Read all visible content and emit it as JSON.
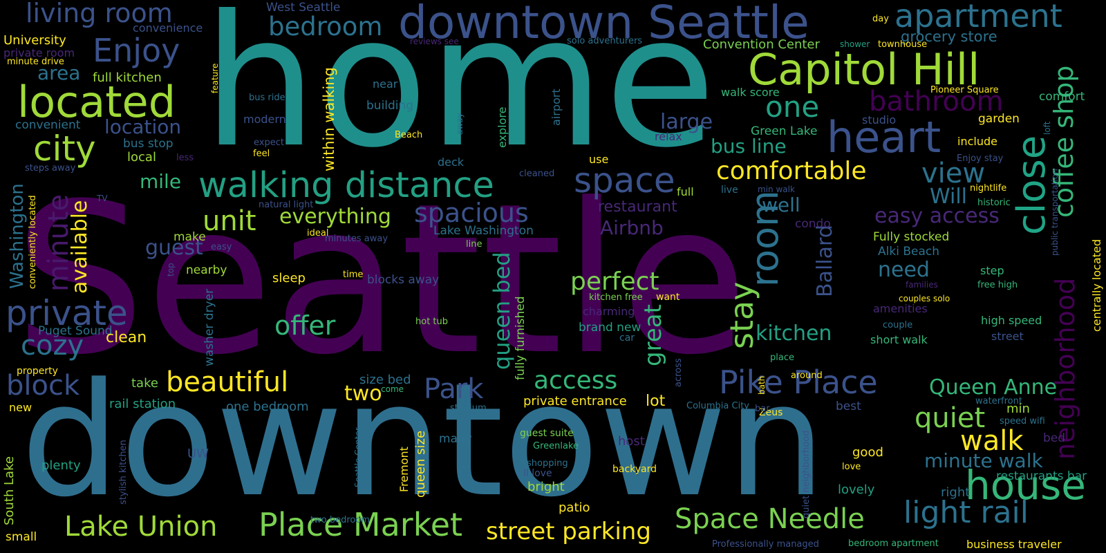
{
  "words": [
    {
      "text": "Seattle",
      "color": "#440154",
      "vertical": false
    },
    {
      "text": "home",
      "color": "#1f8f8c",
      "vertical": false
    },
    {
      "text": "downtown",
      "color": "#2f6f8e",
      "vertical": false
    },
    {
      "text": "downtown Seattle",
      "color": "#3b528b",
      "vertical": false
    },
    {
      "text": "Capitol Hill",
      "color": "#a0da39",
      "vertical": false
    },
    {
      "text": "walking distance",
      "color": "#23a083",
      "vertical": false
    },
    {
      "text": "located",
      "color": "#a0da39",
      "vertical": false
    },
    {
      "text": "living room",
      "color": "#3b528b",
      "vertical": false
    },
    {
      "text": "apartment",
      "color": "#2c728e",
      "vertical": false
    },
    {
      "text": "Enjoy",
      "color": "#3b528b",
      "vertical": false
    },
    {
      "text": "bedroom",
      "color": "#2c728e",
      "vertical": false
    },
    {
      "text": "city",
      "color": "#a0da39",
      "vertical": false
    },
    {
      "text": "heart",
      "color": "#3b528b",
      "vertical": false
    },
    {
      "text": "close",
      "color": "#20a486",
      "vertical": true
    },
    {
      "text": "coffee shop",
      "color": "#35b779",
      "vertical": true
    },
    {
      "text": "neighborhood",
      "color": "#440154",
      "vertical": true
    },
    {
      "text": "space",
      "color": "#3b528b",
      "vertical": false
    },
    {
      "text": "room",
      "color": "#2c728e",
      "vertical": true
    },
    {
      "text": "stay",
      "color": "#7ad151",
      "vertical": true
    },
    {
      "text": "private",
      "color": "#3b528b",
      "vertical": false
    },
    {
      "text": "minute",
      "color": "#481a6c",
      "vertical": true
    },
    {
      "text": "house",
      "color": "#35b779",
      "vertical": false
    },
    {
      "text": "Pike Place",
      "color": "#3b528b",
      "vertical": false
    },
    {
      "text": "Place Market",
      "color": "#7ad151",
      "vertical": false
    },
    {
      "text": "Space Needle",
      "color": "#7ad151",
      "vertical": false
    },
    {
      "text": "light rail",
      "color": "#2c728e",
      "vertical": false
    },
    {
      "text": "Lake Union",
      "color": "#a0da39",
      "vertical": false
    },
    {
      "text": "beautiful",
      "color": "#fde725",
      "vertical": false
    },
    {
      "text": "comfortable",
      "color": "#fde725",
      "vertical": false
    },
    {
      "text": "spacious",
      "color": "#3b528b",
      "vertical": false
    },
    {
      "text": "unit",
      "color": "#a0da39",
      "vertical": false
    },
    {
      "text": "everything",
      "color": "#a0da39",
      "vertical": false
    },
    {
      "text": "perfect",
      "color": "#7ad151",
      "vertical": false
    },
    {
      "text": "offer",
      "color": "#35b779",
      "vertical": false
    },
    {
      "text": "access",
      "color": "#35b779",
      "vertical": false
    },
    {
      "text": "block",
      "color": "#3b528b",
      "vertical": false
    },
    {
      "text": "cozy",
      "color": "#2c728e",
      "vertical": false
    },
    {
      "text": "Park",
      "color": "#3b528b",
      "vertical": false
    },
    {
      "text": "quiet",
      "color": "#7ad151",
      "vertical": false
    },
    {
      "text": "walk",
      "color": "#fde725",
      "vertical": false
    },
    {
      "text": "Queen Anne",
      "color": "#35b779",
      "vertical": false
    },
    {
      "text": "minute walk",
      "color": "#2c728e",
      "vertical": false
    },
    {
      "text": "street parking",
      "color": "#fde725",
      "vertical": false
    },
    {
      "text": "one",
      "color": "#23a083",
      "vertical": false
    },
    {
      "text": "bathroom",
      "color": "#440154",
      "vertical": false
    },
    {
      "text": "view",
      "color": "#2c728e",
      "vertical": false
    },
    {
      "text": "great",
      "color": "#35b779",
      "vertical": true
    },
    {
      "text": "queen bed",
      "color": "#23a083",
      "vertical": true
    },
    {
      "text": "Ballard",
      "color": "#3b528b",
      "vertical": true
    },
    {
      "text": "kitchen",
      "color": "#23a083",
      "vertical": false
    },
    {
      "text": "guest",
      "color": "#3b528b",
      "vertical": false
    },
    {
      "text": "available",
      "color": "#fde725",
      "vertical": true
    },
    {
      "text": "Washington",
      "color": "#2c728e",
      "vertical": true
    },
    {
      "text": "two",
      "color": "#fde725",
      "vertical": false
    },
    {
      "text": "location",
      "color": "#3b528b",
      "vertical": false
    },
    {
      "text": "area",
      "color": "#2c728e",
      "vertical": false
    },
    {
      "text": "large",
      "color": "#3b528b",
      "vertical": false
    },
    {
      "text": "bus line",
      "color": "#23a083",
      "vertical": false
    },
    {
      "text": "easy access",
      "color": "#482878",
      "vertical": false
    },
    {
      "text": "Will",
      "color": "#2c728e",
      "vertical": false
    },
    {
      "text": "Airbnb",
      "color": "#482878",
      "vertical": false
    },
    {
      "text": "well",
      "color": "#2c728e",
      "vertical": false
    },
    {
      "text": "need",
      "color": "#2c728e",
      "vertical": false
    },
    {
      "text": "mile",
      "color": "#35b779",
      "vertical": false
    },
    {
      "text": "restaurant",
      "color": "#482878",
      "vertical": false
    },
    {
      "text": "within walking",
      "color": "#fde725",
      "vertical": true
    },
    {
      "text": "grocery store",
      "color": "#2c728e",
      "vertical": false
    },
    {
      "text": "Convention Center",
      "color": "#7ad151",
      "vertical": false
    },
    {
      "text": "West Seattle",
      "color": "#3b528b",
      "vertical": false
    },
    {
      "text": "University",
      "color": "#fde725",
      "vertical": false
    },
    {
      "text": "convenience",
      "color": "#3b528b",
      "vertical": false
    },
    {
      "text": "private room",
      "color": "#482878",
      "vertical": false
    },
    {
      "text": "minute drive",
      "color": "#fde725",
      "vertical": false
    },
    {
      "text": "full kitchen",
      "color": "#a0da39",
      "vertical": false
    },
    {
      "text": "convenient",
      "color": "#2c728e",
      "vertical": false
    },
    {
      "text": "bus stop",
      "color": "#2c728e",
      "vertical": false
    },
    {
      "text": "local",
      "color": "#a0da39",
      "vertical": false
    },
    {
      "text": "less",
      "color": "#482878",
      "vertical": false
    },
    {
      "text": "steps away",
      "color": "#3b528b",
      "vertical": false
    },
    {
      "text": "TV",
      "color": "#3b528b",
      "vertical": false
    },
    {
      "text": "conveniently located",
      "color": "#fde725",
      "vertical": true
    },
    {
      "text": "Puget Sound",
      "color": "#2c728e",
      "vertical": false
    },
    {
      "text": "property",
      "color": "#fde725",
      "vertical": false
    },
    {
      "text": "clean",
      "color": "#fde725",
      "vertical": false
    },
    {
      "text": "new",
      "color": "#fde725",
      "vertical": false
    },
    {
      "text": "take",
      "color": "#7ad151",
      "vertical": false
    },
    {
      "text": "rail station",
      "color": "#23a083",
      "vertical": false
    },
    {
      "text": "one bedroom",
      "color": "#2c728e",
      "vertical": false
    },
    {
      "text": "size bed",
      "color": "#2c728e",
      "vertical": false
    },
    {
      "text": "come",
      "color": "#35b779",
      "vertical": false
    },
    {
      "text": "stadium",
      "color": "#2c728e",
      "vertical": false
    },
    {
      "text": "South Lake",
      "color": "#a0da39",
      "vertical": true
    },
    {
      "text": "small",
      "color": "#fde725",
      "vertical": false
    },
    {
      "text": "plenty",
      "color": "#23a083",
      "vertical": false
    },
    {
      "text": "stylish kitchen",
      "color": "#3b528b",
      "vertical": true
    },
    {
      "text": "UW",
      "color": "#3b528b",
      "vertical": false
    },
    {
      "text": "Seattle Center",
      "color": "#2c728e",
      "vertical": true
    },
    {
      "text": "Fremont",
      "color": "#fde725",
      "vertical": true
    },
    {
      "text": "queen size",
      "color": "#fde725",
      "vertical": true
    },
    {
      "text": "many",
      "color": "#2c728e",
      "vertical": false
    },
    {
      "text": "two bedroom",
      "color": "#2c728e",
      "vertical": false
    },
    {
      "text": "guest suite",
      "color": "#7ad151",
      "vertical": false
    },
    {
      "text": "Greenlake",
      "color": "#35b779",
      "vertical": false
    },
    {
      "text": "shopping",
      "color": "#2c728e",
      "vertical": false
    },
    {
      "text": "ll love",
      "color": "#3b528b",
      "vertical": false
    },
    {
      "text": "bright",
      "color": "#a0da39",
      "vertical": false
    },
    {
      "text": "patio",
      "color": "#fde725",
      "vertical": false
    },
    {
      "text": "host",
      "color": "#482878",
      "vertical": false
    },
    {
      "text": "backyard",
      "color": "#fde725",
      "vertical": false
    },
    {
      "text": "private entrance",
      "color": "#fde725",
      "vertical": false
    },
    {
      "text": "lot",
      "color": "#fde725",
      "vertical": false
    },
    {
      "text": "Columbia City",
      "color": "#2c728e",
      "vertical": false
    },
    {
      "text": "Zeus",
      "color": "#fde725",
      "vertical": false
    },
    {
      "text": "bar",
      "color": "#3b528b",
      "vertical": false
    },
    {
      "text": "waterfront",
      "color": "#2c728e",
      "vertical": false
    },
    {
      "text": "min",
      "color": "#a0da39",
      "vertical": false
    },
    {
      "text": "speed wifi",
      "color": "#2c728e",
      "vertical": false
    },
    {
      "text": "best",
      "color": "#3b528b",
      "vertical": false
    },
    {
      "text": "bed",
      "color": "#482878",
      "vertical": false
    },
    {
      "text": "good",
      "color": "#fde725",
      "vertical": false
    },
    {
      "text": "love",
      "color": "#fde725",
      "vertical": false
    },
    {
      "text": "restaurants bar",
      "color": "#23a083",
      "vertical": false
    },
    {
      "text": "lovely",
      "color": "#23a083",
      "vertical": false
    },
    {
      "text": "right",
      "color": "#2c728e",
      "vertical": false
    },
    {
      "text": "quiet neighborhood",
      "color": "#3b528b",
      "vertical": true
    },
    {
      "text": "Professionally managed",
      "color": "#3b528b",
      "vertical": false
    },
    {
      "text": "bedroom apartment",
      "color": "#35b779",
      "vertical": false
    },
    {
      "text": "business traveler",
      "color": "#fde725",
      "vertical": false
    },
    {
      "text": "washer dryer",
      "color": "#2c728e",
      "vertical": true
    },
    {
      "text": "fully furnished",
      "color": "#7ad151",
      "vertical": true
    },
    {
      "text": "brand new",
      "color": "#23a083",
      "vertical": false
    },
    {
      "text": "car",
      "color": "#2c728e",
      "vertical": false
    },
    {
      "text": "charming",
      "color": "#482878",
      "vertical": false
    },
    {
      "text": "hot tub",
      "color": "#7ad151",
      "vertical": false
    },
    {
      "text": "kitchen free",
      "color": "#7ad151",
      "vertical": false
    },
    {
      "text": "want",
      "color": "#fde725",
      "vertical": false
    },
    {
      "text": "sleep",
      "color": "#fde725",
      "vertical": false
    },
    {
      "text": "blocks away",
      "color": "#3b528b",
      "vertical": false
    },
    {
      "text": "time",
      "color": "#fde725",
      "vertical": false
    },
    {
      "text": "nearby",
      "color": "#a0da39",
      "vertical": false
    },
    {
      "text": "make",
      "color": "#a0da39",
      "vertical": false
    },
    {
      "text": "easy",
      "color": "#3b528b",
      "vertical": false
    },
    {
      "text": "top",
      "color": "#3b528b",
      "vertical": true
    },
    {
      "text": "ideal",
      "color": "#fde725",
      "vertical": false
    },
    {
      "text": "minutes away",
      "color": "#3b528b",
      "vertical": false
    },
    {
      "text": "line",
      "color": "#7ad151",
      "vertical": false
    },
    {
      "text": "Lake Washington",
      "color": "#2c728e",
      "vertical": false
    },
    {
      "text": "condo",
      "color": "#482878",
      "vertical": false
    },
    {
      "text": "natural light",
      "color": "#3b528b",
      "vertical": false
    },
    {
      "text": "modern",
      "color": "#3b528b",
      "vertical": false
    },
    {
      "text": "expect",
      "color": "#3b528b",
      "vertical": false
    },
    {
      "text": "feel",
      "color": "#fde725",
      "vertical": false
    },
    {
      "text": "bus ride",
      "color": "#2c728e",
      "vertical": false
    },
    {
      "text": "near",
      "color": "#2c728e",
      "vertical": false
    },
    {
      "text": "building",
      "color": "#2c728e",
      "vertical": false
    },
    {
      "text": "Beach",
      "color": "#fde725",
      "vertical": false
    },
    {
      "text": "explore",
      "color": "#35b779",
      "vertical": true
    },
    {
      "text": "away",
      "color": "#2c728e",
      "vertical": true
    },
    {
      "text": "airport",
      "color": "#2c728e",
      "vertical": true
    },
    {
      "text": "deck",
      "color": "#2c728e",
      "vertical": false
    },
    {
      "text": "use",
      "color": "#fde725",
      "vertical": false
    },
    {
      "text": "relax",
      "color": "#482878",
      "vertical": false
    },
    {
      "text": "cleaned",
      "color": "#3b528b",
      "vertical": false
    },
    {
      "text": "full",
      "color": "#a0da39",
      "vertical": false
    },
    {
      "text": "live",
      "color": "#2c728e",
      "vertical": false
    },
    {
      "text": "min walk",
      "color": "#3b528b",
      "vertical": false
    },
    {
      "text": "reviews see",
      "color": "#482878",
      "vertical": false
    },
    {
      "text": "solo adventurers",
      "color": "#2c728e",
      "vertical": false
    },
    {
      "text": "shower",
      "color": "#23a083",
      "vertical": false
    },
    {
      "text": "townhouse",
      "color": "#fde725",
      "vertical": false
    },
    {
      "text": "day",
      "color": "#fde725",
      "vertical": false
    },
    {
      "text": "walk score",
      "color": "#35b779",
      "vertical": false
    },
    {
      "text": "Green Lake",
      "color": "#35b779",
      "vertical": false
    },
    {
      "text": "Pioneer Square",
      "color": "#fde725",
      "vertical": false
    },
    {
      "text": "comfort",
      "color": "#35b779",
      "vertical": false
    },
    {
      "text": "garden",
      "color": "#fde725",
      "vertical": false
    },
    {
      "text": "studio",
      "color": "#3b528b",
      "vertical": false
    },
    {
      "text": "include",
      "color": "#fde725",
      "vertical": false
    },
    {
      "text": "loft",
      "color": "#2c728e",
      "vertical": true
    },
    {
      "text": "Enjoy stay",
      "color": "#3b528b",
      "vertical": false
    },
    {
      "text": "public transportation",
      "color": "#3b528b",
      "vertical": true
    },
    {
      "text": "nightlife",
      "color": "#fde725",
      "vertical": false
    },
    {
      "text": "historic",
      "color": "#35b779",
      "vertical": false
    },
    {
      "text": "Fully stocked",
      "color": "#a0da39",
      "vertical": false
    },
    {
      "text": "Alki Beach",
      "color": "#2c728e",
      "vertical": false
    },
    {
      "text": "step",
      "color": "#35b779",
      "vertical": false
    },
    {
      "text": "free high",
      "color": "#35b779",
      "vertical": false
    },
    {
      "text": "families",
      "color": "#482878",
      "vertical": false
    },
    {
      "text": "amenities",
      "color": "#482878",
      "vertical": false
    },
    {
      "text": "couples solo",
      "color": "#fde725",
      "vertical": false
    },
    {
      "text": "high speed",
      "color": "#35b779",
      "vertical": false
    },
    {
      "text": "couple",
      "color": "#2c728e",
      "vertical": false
    },
    {
      "text": "street",
      "color": "#3b528b",
      "vertical": false
    },
    {
      "text": "short walk",
      "color": "#35b779",
      "vertical": false
    },
    {
      "text": "centrally located",
      "color": "#fde725",
      "vertical": true
    },
    {
      "text": "place",
      "color": "#35b779",
      "vertical": false
    },
    {
      "text": "around",
      "color": "#fde725",
      "vertical": false
    },
    {
      "text": "bath",
      "color": "#fde725",
      "vertical": true
    },
    {
      "text": "across",
      "color": "#3b528b",
      "vertical": true
    },
    {
      "text": "feature",
      "color": "#fde725",
      "vertical": true
    }
  ]
}
